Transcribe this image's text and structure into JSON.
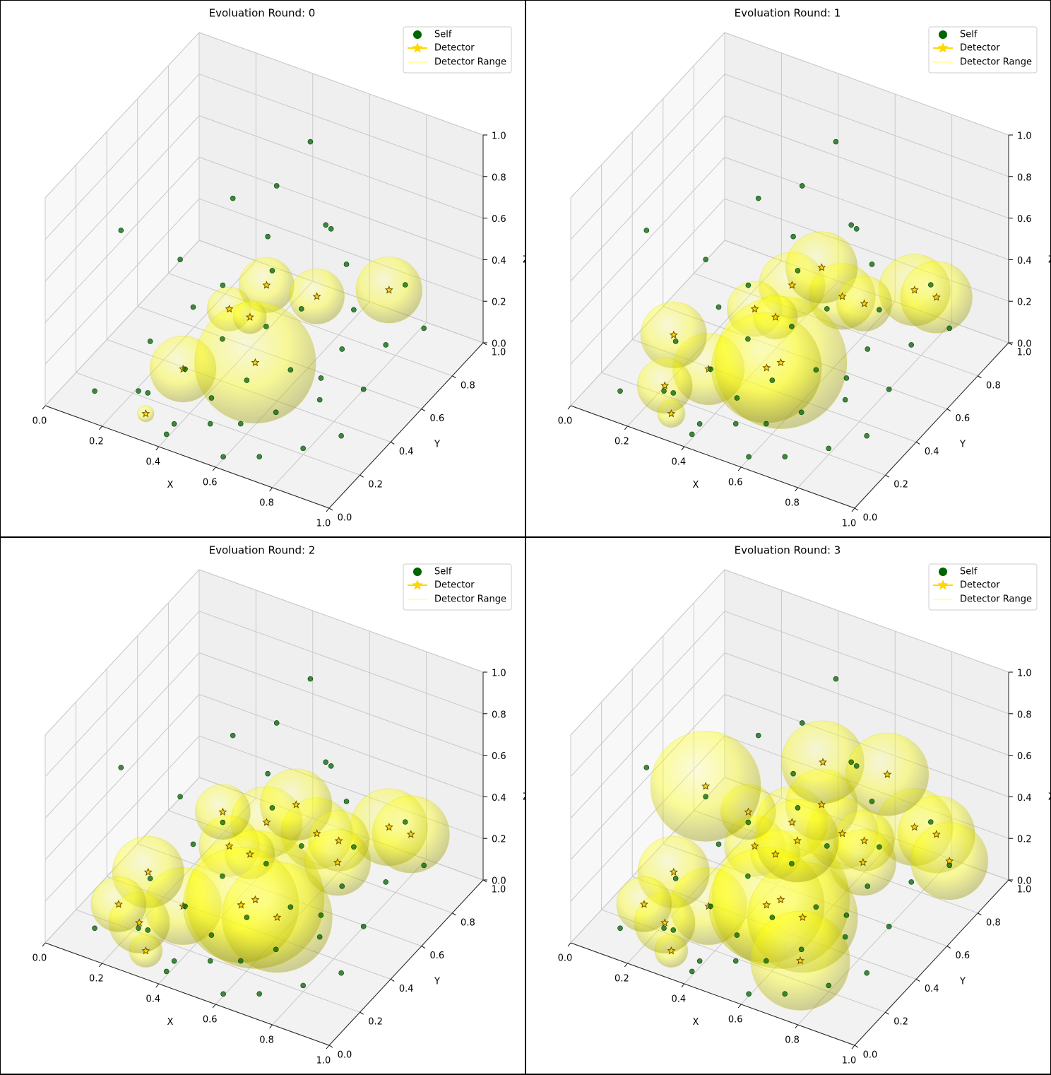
{
  "chart_data": [
    {
      "type": "scatter3d",
      "title": "Evoluation Round: 0",
      "xlabel": "X",
      "ylabel": "Y",
      "zlabel": "Z",
      "xlim": [
        0,
        1
      ],
      "ylim": [
        0,
        1
      ],
      "zlim": [
        0,
        1
      ],
      "xticks": [
        {
          "value": 0,
          "label": "0.0"
        },
        0.2,
        0.4,
        0.6,
        0.8,
        {
          "value": 1,
          "label": "1.0"
        }
      ],
      "yticks": [
        {
          "value": 0,
          "label": "0.0"
        },
        0.2,
        0.4,
        0.6,
        0.8,
        {
          "value": 1,
          "label": "1.0"
        }
      ],
      "zticks": [
        {
          "value": 0,
          "label": "0.0"
        },
        0.2,
        0.4,
        0.6,
        0.8,
        {
          "value": 1,
          "label": "1.0"
        }
      ],
      "legend": "upper right",
      "series": [
        {
          "name": "Self",
          "color": "#006400",
          "x": [
            0.12,
            0.18,
            0.22,
            0.25,
            0.28,
            0.3,
            0.33,
            0.35,
            0.38,
            0.4,
            0.42,
            0.45,
            0.48,
            0.5,
            0.52,
            0.55,
            0.58,
            0.6,
            0.62,
            0.65,
            0.68,
            0.7,
            0.72,
            0.75,
            0.78,
            0.8,
            0.82,
            0.85,
            0.88,
            0.9,
            0.15,
            0.2,
            0.3,
            0.4,
            0.5,
            0.6,
            0.7,
            0.05,
            0.5,
            0.6
          ],
          "y": [
            0.1,
            0.35,
            0.2,
            0.5,
            0.15,
            0.6,
            0.3,
            0.8,
            0.45,
            0.1,
            0.7,
            0.25,
            0.55,
            0.9,
            0.35,
            0.65,
            0.2,
            0.85,
            0.45,
            0.3,
            0.75,
            0.1,
            0.6,
            0.4,
            0.9,
            0.2,
            0.7,
            0.5,
            0.3,
            0.8,
            0.6,
            0.85,
            0.95,
            0.05,
            0.15,
            0.05,
            0.5,
            0.4,
            0.8,
            0.75
          ],
          "z": [
            0.05,
            0.12,
            0.02,
            0.2,
            0.08,
            0.25,
            0.1,
            0.35,
            0.15,
            0.03,
            0.3,
            0.06,
            0.18,
            0.4,
            0.1,
            0.22,
            0.04,
            0.3,
            0.12,
            0.05,
            0.2,
            0.02,
            0.15,
            0.08,
            0.25,
            0.03,
            0.14,
            0.1,
            0.05,
            0.18,
            0.3,
            0.42,
            0.45,
            0.02,
            0.04,
            0.01,
            0.08,
            0.55,
            0.88,
            0.55
          ]
        },
        {
          "name": "Detector",
          "color": "#ffd700",
          "x": [
            0.4,
            0.55,
            0.75,
            0.35,
            0.35,
            0.55,
            0.3,
            0.45
          ],
          "y": [
            0.7,
            0.75,
            0.85,
            0.55,
            0.25,
            0.35,
            0.1,
            0.5
          ],
          "z": [
            0.22,
            0.2,
            0.25,
            0.2,
            0.15,
            0.2,
            0.03,
            0.25
          ]
        },
        {
          "name": "Detector Range",
          "color": "#ffff00",
          "radius": [
            0.1,
            0.1,
            0.12,
            0.08,
            0.12,
            0.22,
            0.03,
            0.06
          ]
        }
      ]
    },
    {
      "type": "scatter3d",
      "title": "Evoluation Round: 1",
      "xlabel": "X",
      "ylabel": "Y",
      "zlabel": "Z",
      "xlim": [
        0,
        1
      ],
      "ylim": [
        0,
        1
      ],
      "zlim": [
        0,
        1
      ],
      "xticks": [
        {
          "value": 0,
          "label": "0.0"
        },
        0.2,
        0.4,
        0.6,
        0.8,
        {
          "value": 1,
          "label": "1.0"
        }
      ],
      "yticks": [
        {
          "value": 0,
          "label": "0.0"
        },
        0.2,
        0.4,
        0.6,
        0.8,
        {
          "value": 1,
          "label": "1.0"
        }
      ],
      "zticks": [
        {
          "value": 0,
          "label": "0.0"
        },
        0.2,
        0.4,
        0.6,
        0.8,
        {
          "value": 1,
          "label": "1.0"
        }
      ],
      "legend": "upper right",
      "series": [
        {
          "name": "Self",
          "color": "#006400",
          "x": [
            0.12,
            0.18,
            0.22,
            0.25,
            0.28,
            0.3,
            0.33,
            0.35,
            0.38,
            0.4,
            0.42,
            0.45,
            0.48,
            0.5,
            0.52,
            0.55,
            0.58,
            0.6,
            0.62,
            0.65,
            0.68,
            0.7,
            0.72,
            0.75,
            0.78,
            0.8,
            0.82,
            0.85,
            0.88,
            0.9,
            0.15,
            0.2,
            0.3,
            0.4,
            0.5,
            0.6,
            0.7,
            0.05,
            0.5,
            0.6
          ],
          "y": [
            0.1,
            0.35,
            0.2,
            0.5,
            0.15,
            0.6,
            0.3,
            0.8,
            0.45,
            0.1,
            0.7,
            0.25,
            0.55,
            0.9,
            0.35,
            0.65,
            0.2,
            0.85,
            0.45,
            0.3,
            0.75,
            0.1,
            0.6,
            0.4,
            0.9,
            0.2,
            0.7,
            0.5,
            0.3,
            0.8,
            0.6,
            0.85,
            0.95,
            0.05,
            0.15,
            0.05,
            0.5,
            0.4,
            0.8,
            0.75
          ],
          "z": [
            0.05,
            0.12,
            0.02,
            0.2,
            0.08,
            0.25,
            0.1,
            0.35,
            0.15,
            0.03,
            0.3,
            0.06,
            0.18,
            0.4,
            0.1,
            0.22,
            0.04,
            0.3,
            0.12,
            0.05,
            0.2,
            0.02,
            0.15,
            0.08,
            0.25,
            0.03,
            0.14,
            0.1,
            0.05,
            0.18,
            0.3,
            0.42,
            0.45,
            0.02,
            0.04,
            0.01,
            0.08,
            0.55,
            0.88,
            0.55
          ]
        },
        {
          "name": "Detector",
          "color": "#ffd700",
          "x": [
            0.4,
            0.55,
            0.75,
            0.35,
            0.35,
            0.55,
            0.3,
            0.45,
            0.2,
            0.25,
            0.8,
            0.45,
            0.6,
            0.5
          ],
          "y": [
            0.7,
            0.75,
            0.85,
            0.55,
            0.25,
            0.35,
            0.1,
            0.5,
            0.3,
            0.15,
            0.9,
            0.8,
            0.8,
            0.35
          ],
          "z": [
            0.22,
            0.2,
            0.25,
            0.2,
            0.15,
            0.2,
            0.03,
            0.25,
            0.2,
            0.1,
            0.2,
            0.25,
            0.15,
            0.15
          ]
        },
        {
          "name": "Detector Range",
          "color": "#ffff00",
          "radius": [
            0.12,
            0.12,
            0.13,
            0.1,
            0.13,
            0.24,
            0.05,
            0.08,
            0.12,
            0.1,
            0.13,
            0.13,
            0.1,
            0.2
          ]
        }
      ]
    },
    {
      "type": "scatter3d",
      "title": "Evoluation Round: 2",
      "xlabel": "X",
      "ylabel": "Y",
      "zlabel": "Z",
      "xlim": [
        0,
        1
      ],
      "ylim": [
        0,
        1
      ],
      "zlim": [
        0,
        1
      ],
      "xticks": [
        {
          "value": 0,
          "label": "0.0"
        },
        0.2,
        0.4,
        0.6,
        0.8,
        {
          "value": 1,
          "label": "1.0"
        }
      ],
      "yticks": [
        {
          "value": 0,
          "label": "0.0"
        },
        0.2,
        0.4,
        0.6,
        0.8,
        {
          "value": 1,
          "label": "1.0"
        }
      ],
      "zticks": [
        {
          "value": 0,
          "label": "0.0"
        },
        0.2,
        0.4,
        0.6,
        0.8,
        {
          "value": 1,
          "label": "1.0"
        }
      ],
      "legend": "upper right",
      "series": [
        {
          "name": "Self",
          "color": "#006400",
          "x": [
            0.12,
            0.18,
            0.22,
            0.25,
            0.28,
            0.3,
            0.33,
            0.35,
            0.38,
            0.4,
            0.42,
            0.45,
            0.48,
            0.5,
            0.52,
            0.55,
            0.58,
            0.6,
            0.62,
            0.65,
            0.68,
            0.7,
            0.72,
            0.75,
            0.78,
            0.8,
            0.82,
            0.85,
            0.88,
            0.9,
            0.15,
            0.2,
            0.3,
            0.4,
            0.5,
            0.6,
            0.7,
            0.05,
            0.5,
            0.6
          ],
          "y": [
            0.1,
            0.35,
            0.2,
            0.5,
            0.15,
            0.6,
            0.3,
            0.8,
            0.45,
            0.1,
            0.7,
            0.25,
            0.55,
            0.9,
            0.35,
            0.65,
            0.2,
            0.85,
            0.45,
            0.3,
            0.75,
            0.1,
            0.6,
            0.4,
            0.9,
            0.2,
            0.7,
            0.5,
            0.3,
            0.8,
            0.6,
            0.85,
            0.95,
            0.05,
            0.15,
            0.05,
            0.5,
            0.4,
            0.8,
            0.75
          ],
          "z": [
            0.05,
            0.12,
            0.02,
            0.2,
            0.08,
            0.25,
            0.1,
            0.35,
            0.15,
            0.03,
            0.3,
            0.06,
            0.18,
            0.4,
            0.1,
            0.22,
            0.04,
            0.3,
            0.12,
            0.05,
            0.2,
            0.02,
            0.15,
            0.08,
            0.25,
            0.03,
            0.14,
            0.1,
            0.05,
            0.18,
            0.3,
            0.42,
            0.45,
            0.02,
            0.04,
            0.01,
            0.08,
            0.55,
            0.88,
            0.55
          ]
        },
        {
          "name": "Detector",
          "color": "#ffd700",
          "x": [
            0.4,
            0.55,
            0.75,
            0.35,
            0.35,
            0.55,
            0.3,
            0.45,
            0.2,
            0.25,
            0.8,
            0.45,
            0.6,
            0.5,
            0.3,
            0.65,
            0.15,
            0.6
          ],
          "y": [
            0.7,
            0.75,
            0.85,
            0.55,
            0.25,
            0.35,
            0.1,
            0.5,
            0.3,
            0.15,
            0.9,
            0.8,
            0.8,
            0.35,
            0.6,
            0.7,
            0.2,
            0.4
          ],
          "z": [
            0.22,
            0.2,
            0.25,
            0.2,
            0.15,
            0.2,
            0.03,
            0.25,
            0.2,
            0.1,
            0.2,
            0.25,
            0.15,
            0.15,
            0.3,
            0.15,
            0.1,
            0.1
          ]
        },
        {
          "name": "Detector Range",
          "color": "#ffff00",
          "radius": [
            0.13,
            0.13,
            0.14,
            0.11,
            0.14,
            0.25,
            0.06,
            0.09,
            0.13,
            0.11,
            0.14,
            0.13,
            0.11,
            0.21,
            0.1,
            0.12,
            0.1,
            0.2
          ]
        }
      ]
    },
    {
      "type": "scatter3d",
      "title": "Evoluation Round: 3",
      "xlabel": "X",
      "ylabel": "Y",
      "zlabel": "Z",
      "xlim": [
        0,
        1
      ],
      "ylim": [
        0,
        1
      ],
      "zlim": [
        0,
        1
      ],
      "xticks": [
        {
          "value": 0,
          "label": "0.0"
        },
        0.2,
        0.4,
        0.6,
        0.8,
        {
          "value": 1,
          "label": "1.0"
        }
      ],
      "yticks": [
        {
          "value": 0,
          "label": "0.0"
        },
        0.2,
        0.4,
        0.6,
        0.8,
        {
          "value": 1,
          "label": "1.0"
        }
      ],
      "zticks": [
        {
          "value": 0,
          "label": "0.0"
        },
        0.2,
        0.4,
        0.6,
        0.8,
        {
          "value": 1,
          "label": "1.0"
        }
      ],
      "legend": "upper right",
      "series": [
        {
          "name": "Self",
          "color": "#006400",
          "x": [
            0.12,
            0.18,
            0.22,
            0.25,
            0.28,
            0.3,
            0.33,
            0.35,
            0.38,
            0.4,
            0.42,
            0.45,
            0.48,
            0.5,
            0.52,
            0.55,
            0.58,
            0.6,
            0.62,
            0.65,
            0.68,
            0.7,
            0.72,
            0.75,
            0.78,
            0.8,
            0.82,
            0.85,
            0.88,
            0.9,
            0.15,
            0.2,
            0.3,
            0.4,
            0.5,
            0.6,
            0.7,
            0.05,
            0.5,
            0.6
          ],
          "y": [
            0.1,
            0.35,
            0.2,
            0.5,
            0.15,
            0.6,
            0.3,
            0.8,
            0.45,
            0.1,
            0.7,
            0.25,
            0.55,
            0.9,
            0.35,
            0.65,
            0.2,
            0.85,
            0.45,
            0.3,
            0.75,
            0.1,
            0.6,
            0.4,
            0.9,
            0.2,
            0.7,
            0.5,
            0.3,
            0.8,
            0.6,
            0.85,
            0.95,
            0.05,
            0.15,
            0.05,
            0.5,
            0.4,
            0.8,
            0.75
          ],
          "z": [
            0.05,
            0.12,
            0.02,
            0.2,
            0.08,
            0.25,
            0.1,
            0.35,
            0.15,
            0.03,
            0.3,
            0.06,
            0.18,
            0.4,
            0.1,
            0.22,
            0.04,
            0.3,
            0.12,
            0.05,
            0.2,
            0.02,
            0.15,
            0.08,
            0.25,
            0.03,
            0.14,
            0.1,
            0.05,
            0.18,
            0.3,
            0.42,
            0.45,
            0.02,
            0.04,
            0.01,
            0.08,
            0.55,
            0.88,
            0.55
          ]
        },
        {
          "name": "Detector",
          "color": "#ffd700",
          "x": [
            0.4,
            0.55,
            0.75,
            0.35,
            0.35,
            0.55,
            0.3,
            0.45,
            0.2,
            0.25,
            0.8,
            0.45,
            0.6,
            0.5,
            0.3,
            0.65,
            0.15,
            0.6,
            0.15,
            0.7,
            0.4,
            0.6,
            0.9,
            0.5
          ],
          "y": [
            0.7,
            0.75,
            0.85,
            0.55,
            0.25,
            0.35,
            0.1,
            0.5,
            0.3,
            0.15,
            0.9,
            0.8,
            0.8,
            0.35,
            0.6,
            0.7,
            0.2,
            0.4,
            0.6,
            0.2,
            0.9,
            0.95,
            0.8,
            0.55
          ],
          "z": [
            0.22,
            0.2,
            0.25,
            0.2,
            0.15,
            0.2,
            0.03,
            0.25,
            0.2,
            0.1,
            0.2,
            0.25,
            0.15,
            0.15,
            0.3,
            0.15,
            0.1,
            0.1,
            0.35,
            0.1,
            0.35,
            0.35,
            0.2,
            0.3
          ]
        },
        {
          "name": "Detector Range",
          "color": "#ffff00",
          "radius": [
            0.13,
            0.13,
            0.14,
            0.11,
            0.14,
            0.25,
            0.06,
            0.09,
            0.13,
            0.11,
            0.14,
            0.13,
            0.11,
            0.21,
            0.1,
            0.12,
            0.1,
            0.2,
            0.2,
            0.18,
            0.15,
            0.15,
            0.14,
            0.15
          ]
        }
      ]
    }
  ]
}
